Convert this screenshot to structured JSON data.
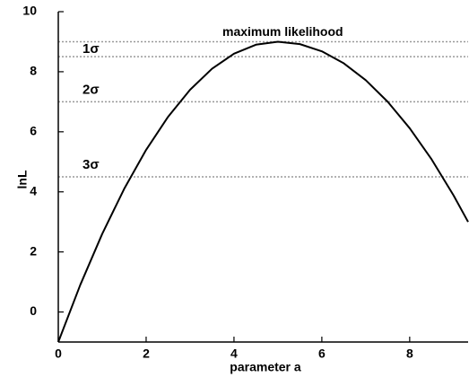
{
  "chart_data": {
    "type": "line",
    "x": [
      0,
      0.5,
      1,
      1.5,
      2,
      2.5,
      3,
      3.5,
      4,
      4.5,
      5,
      5.5,
      6,
      6.5,
      7,
      7.5,
      8,
      8.5,
      9,
      9.33
    ],
    "values": [
      -1,
      0.9,
      2.6,
      4.1,
      5.4,
      6.5,
      7.4,
      8.1,
      8.6,
      8.9,
      9,
      8.92,
      8.68,
      8.28,
      7.72,
      7.0,
      6.12,
      5.08,
      3.88,
      3.0
    ],
    "color": "#000000",
    "xlabel": "parameter a",
    "ylabel": "lnL",
    "xlim": [
      0,
      9.33
    ],
    "ylim": [
      -1,
      10
    ],
    "xticks": [
      0,
      2,
      4,
      6,
      8
    ],
    "yticks": [
      0,
      2,
      4,
      6,
      8,
      10
    ],
    "grid": false,
    "hlines": [
      {
        "value": 9,
        "label": "maximum likelihood"
      },
      {
        "value": 8.5,
        "label": "1σ"
      },
      {
        "value": 7,
        "label": "2σ"
      },
      {
        "value": 4.5,
        "label": "3σ"
      }
    ]
  }
}
